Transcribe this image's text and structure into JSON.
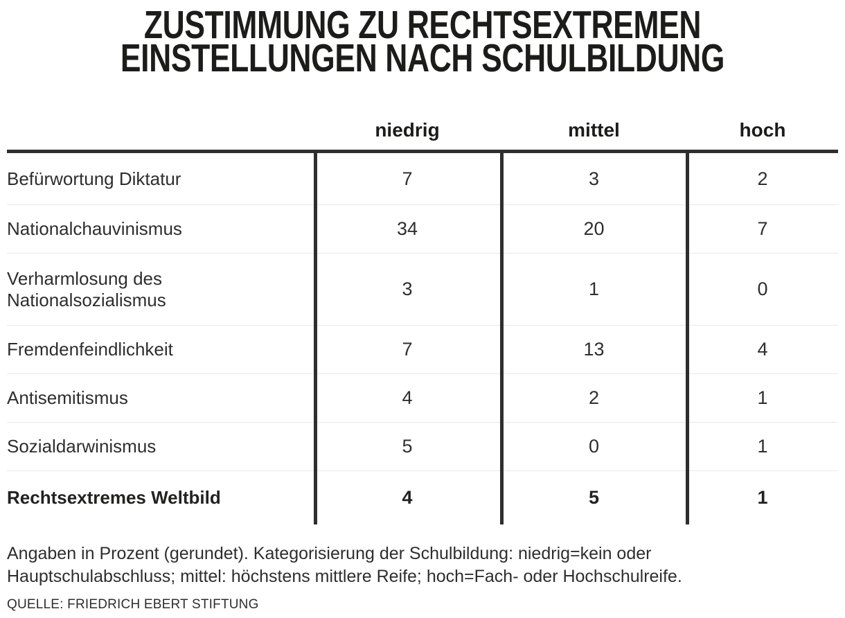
{
  "title": {
    "line1": "ZUSTIMMUNG ZU RECHTSEXTREMEN",
    "line2": "EINSTELLUNGEN NACH SCHULBILDUNG"
  },
  "chart_data": {
    "type": "table",
    "title": "Zustimmung zu rechtsextremen Einstellungen nach Schulbildung",
    "unit": "Prozent (gerundet)",
    "columns": [
      "niedrig",
      "mittel",
      "hoch"
    ],
    "rows": [
      {
        "label": "Befürwortung Diktatur",
        "values": [
          7,
          3,
          2
        ],
        "emphasis": false
      },
      {
        "label": "Nationalchauvinismus",
        "values": [
          34,
          20,
          7
        ],
        "emphasis": false
      },
      {
        "label": "Verharmlosung des Nationalsozialismus",
        "values": [
          3,
          1,
          0
        ],
        "emphasis": false
      },
      {
        "label": "Fremdenfeindlichkeit",
        "values": [
          7,
          13,
          4
        ],
        "emphasis": false
      },
      {
        "label": "Antisemitismus",
        "values": [
          4,
          2,
          1
        ],
        "emphasis": false
      },
      {
        "label": "Sozialdarwinismus",
        "values": [
          5,
          0,
          1
        ],
        "emphasis": false
      },
      {
        "label": "Rechtsextremes Weltbild",
        "values": [
          4,
          5,
          1
        ],
        "emphasis": true
      }
    ]
  },
  "footer": {
    "note_line1": "Angaben in Prozent (gerundet). Kategorisierung der Schulbildung: niedrig=kein oder",
    "note_line2": "Hauptschulabschluss; mittel: höchstens mittlere Reife; hoch=Fach- oder Hochschulreife.",
    "source": "QUELLE: FRIEDRICH EBERT STIFTUNG"
  },
  "colors": {
    "line_dark": "#2e2e2e",
    "line_light": "#e8e8e8",
    "text": "#2e2e2e",
    "title_text": "#1c1c1a",
    "background": "#ffffff"
  }
}
